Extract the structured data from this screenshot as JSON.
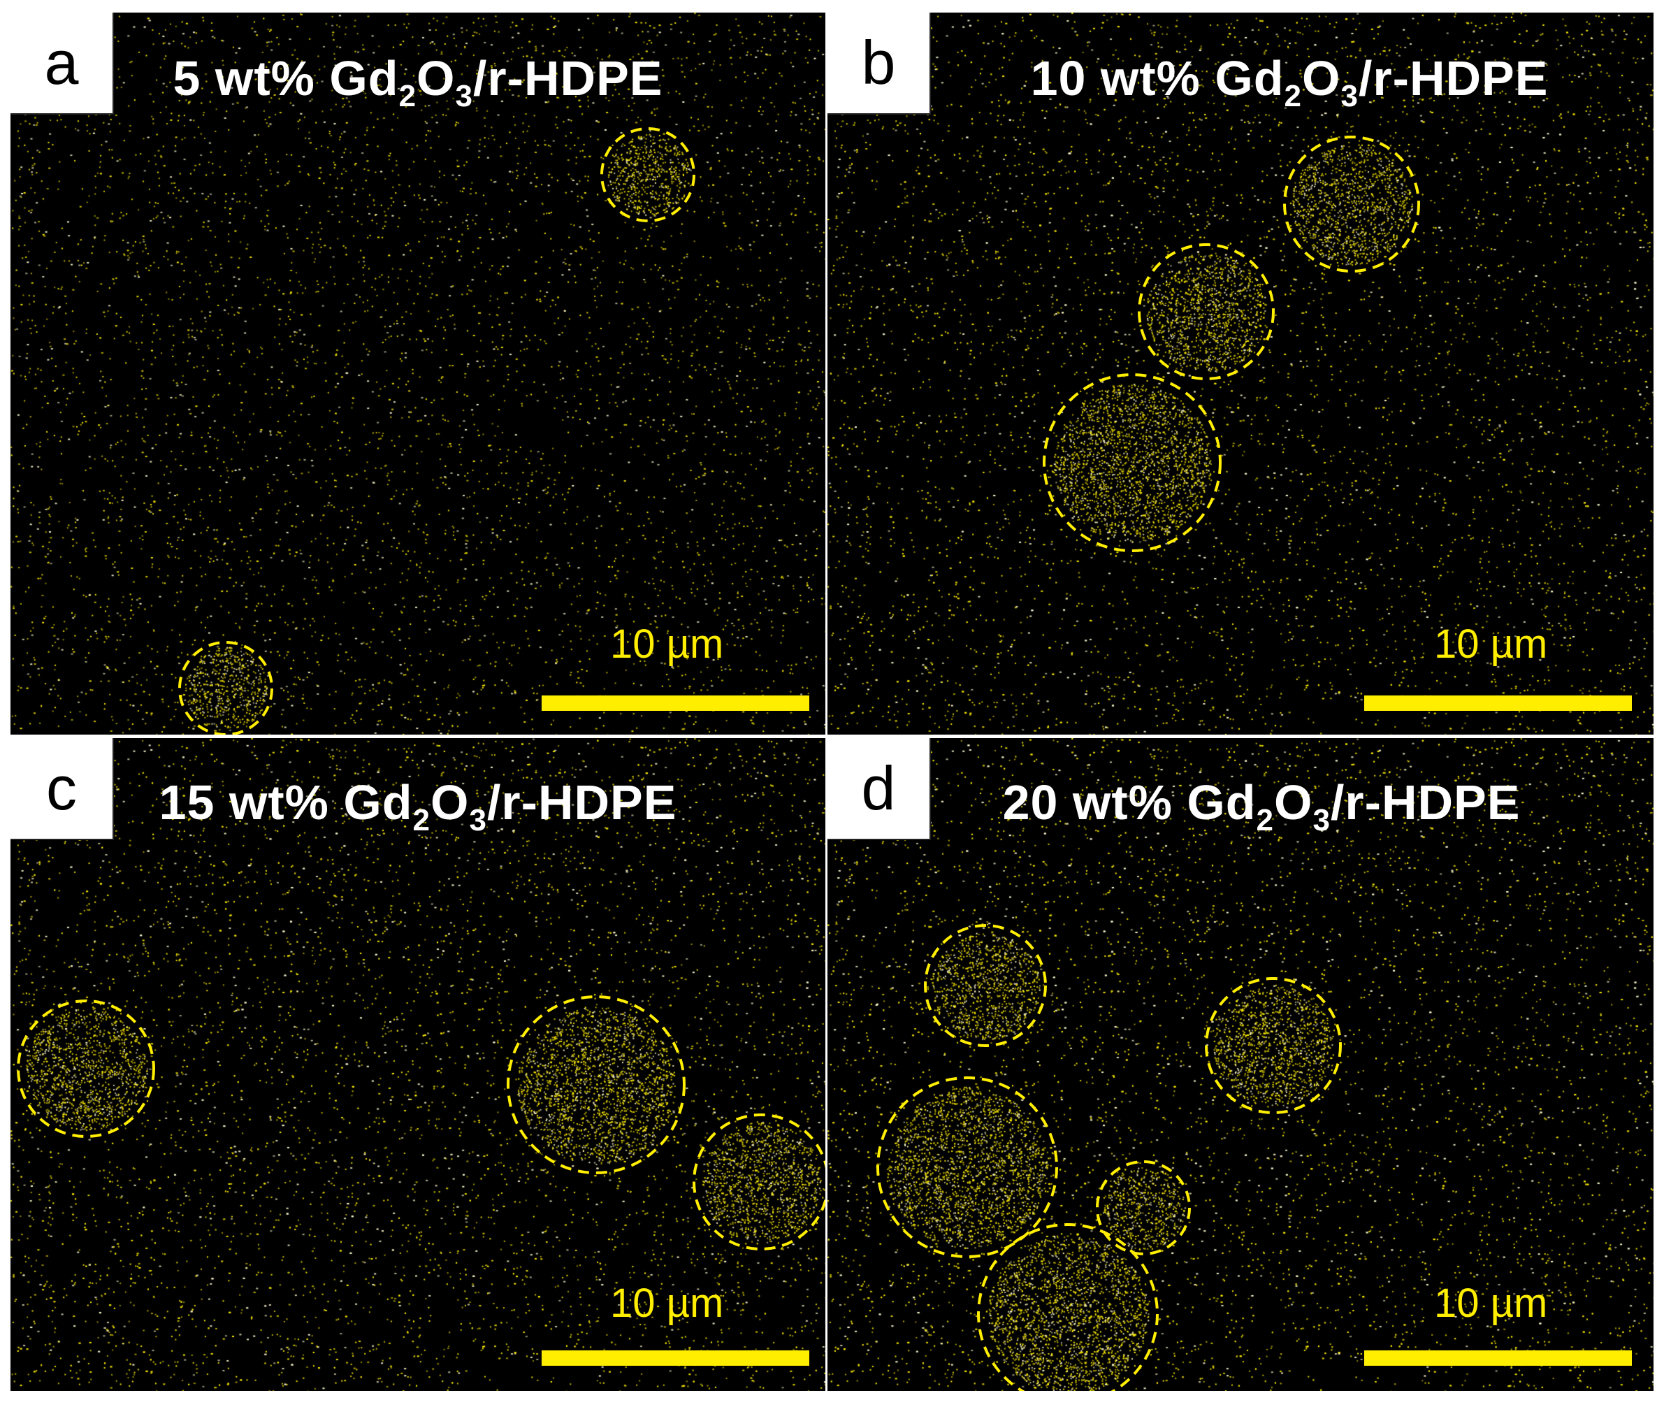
{
  "accent_color": "#ffee00",
  "panels": [
    {
      "letter": "a",
      "title_pre": "5 wt% Gd",
      "sub1": "2",
      "title_mid": "O",
      "sub2": "3",
      "title_post": "/r-HDPE",
      "scale_label": "10 µm"
    },
    {
      "letter": "b",
      "title_pre": "10 wt% Gd",
      "sub1": "2",
      "title_mid": "O",
      "sub2": "3",
      "title_post": "/r-HDPE",
      "scale_label": "10 µm"
    },
    {
      "letter": "c",
      "title_pre": "15 wt% Gd",
      "sub1": "2",
      "title_mid": "O",
      "sub2": "3",
      "title_post": "/r-HDPE",
      "scale_label": "10 µm"
    },
    {
      "letter": "d",
      "title_pre": "20 wt% Gd",
      "sub1": "2",
      "title_mid": "O",
      "sub2": "3",
      "title_post": "/r-HDPE",
      "scale_label": "10 µm"
    }
  ]
}
